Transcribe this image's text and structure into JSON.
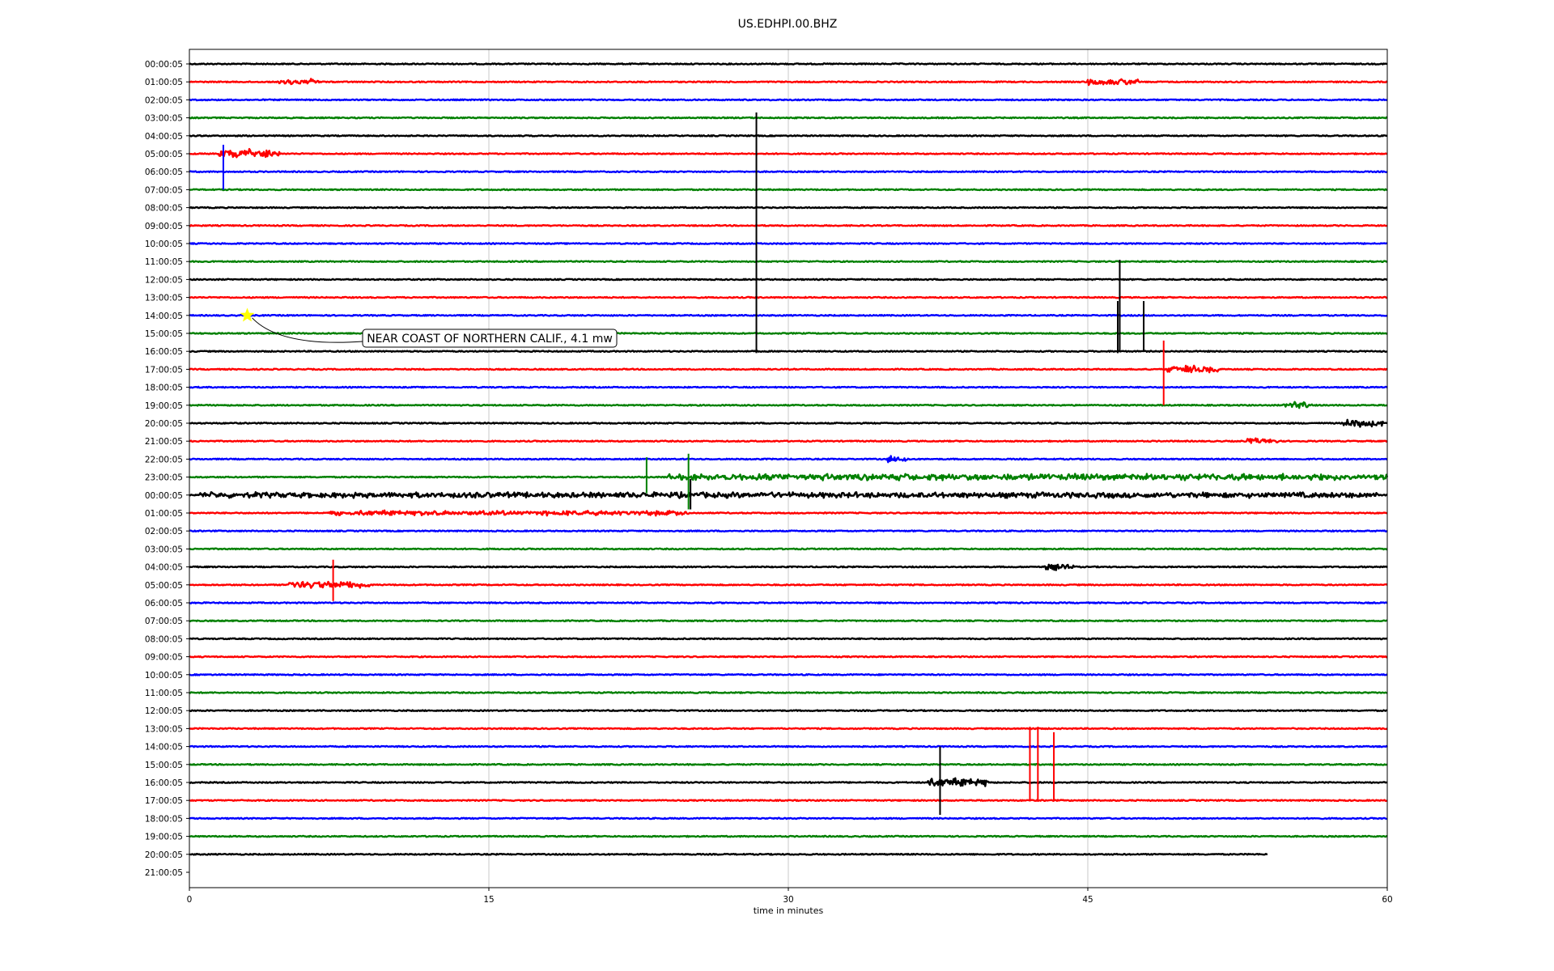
{
  "chart_data": {
    "type": "line",
    "title": "US.EDHPI.00.BHZ",
    "xlabel": "time in minutes",
    "ylabel": "",
    "xlim": [
      0,
      60
    ],
    "xticks": [
      "0",
      "15",
      "30",
      "45",
      "60"
    ],
    "grid": "vertical gridlines at 15, 30, 45",
    "row_labels": [
      "00:00:05",
      "01:00:05",
      "02:00:05",
      "03:00:05",
      "04:00:05",
      "05:00:05",
      "06:00:05",
      "07:00:05",
      "08:00:05",
      "09:00:05",
      "10:00:05",
      "11:00:05",
      "12:00:05",
      "13:00:05",
      "14:00:05",
      "15:00:05",
      "16:00:05",
      "17:00:05",
      "18:00:05",
      "19:00:05",
      "20:00:05",
      "21:00:05",
      "22:00:05",
      "23:00:05",
      "00:00:05",
      "01:00:05",
      "02:00:05",
      "03:00:05",
      "04:00:05",
      "05:00:05",
      "06:00:05",
      "07:00:05",
      "08:00:05",
      "09:00:05",
      "10:00:05",
      "11:00:05",
      "12:00:05",
      "13:00:05",
      "14:00:05",
      "15:00:05",
      "16:00:05",
      "17:00:05",
      "18:00:05",
      "19:00:05",
      "20:00:05",
      "21:00:05"
    ],
    "trace_colors": [
      "#000000",
      "#ff0000",
      "#0000ff",
      "#008000"
    ],
    "trace_end_minute": [
      60,
      60,
      60,
      60,
      60,
      60,
      60,
      60,
      60,
      60,
      60,
      60,
      60,
      60,
      60,
      60,
      60,
      60,
      60,
      60,
      60,
      60,
      60,
      60,
      60,
      60,
      60,
      60,
      60,
      60,
      60,
      60,
      60,
      60,
      60,
      60,
      60,
      60,
      60,
      60,
      60,
      60,
      60,
      60,
      54,
      0
    ],
    "spikes": [
      {
        "row": 3,
        "minute": 28.4,
        "up": 0.3,
        "down": 13.1,
        "color": "#000000"
      },
      {
        "row": 12,
        "minute": 46.6,
        "up": 1.1,
        "down": 4.0,
        "color": "#000000"
      },
      {
        "row": 14,
        "minute": 46.5,
        "up": 0.8,
        "down": 2.1,
        "color": "#000000"
      },
      {
        "row": 15,
        "minute": 47.8,
        "up": 1.8,
        "down": 1.0,
        "color": "#000000"
      },
      {
        "row": 5,
        "minute": 1.7,
        "up": 0.5,
        "down": 2.0,
        "color": "#0000ff"
      },
      {
        "row": 17,
        "minute": 48.8,
        "up": 1.6,
        "down": 2.0,
        "color": "#ff0000"
      },
      {
        "row": 23,
        "minute": 22.9,
        "up": 1.1,
        "down": 0.9,
        "color": "#008000"
      },
      {
        "row": 23,
        "minute": 25.0,
        "up": 1.3,
        "down": 1.8,
        "color": "#008000"
      },
      {
        "row": 24,
        "minute": 25.1,
        "up": 0.9,
        "down": 0.8,
        "color": "#000000"
      },
      {
        "row": 29,
        "minute": 7.2,
        "up": 1.4,
        "down": 0.9,
        "color": "#ff0000"
      },
      {
        "row": 37,
        "minute": 42.1,
        "up": 0.1,
        "down": 4.0,
        "color": "#ff0000"
      },
      {
        "row": 37,
        "minute": 42.5,
        "up": 0.1,
        "down": 4.0,
        "color": "#ff0000"
      },
      {
        "row": 38,
        "minute": 43.3,
        "up": 0.8,
        "down": 3.0,
        "color": "#ff0000"
      },
      {
        "row": 40,
        "minute": 37.6,
        "up": 2.0,
        "down": 1.8,
        "color": "#000000"
      }
    ],
    "bursts": [
      {
        "row": 1,
        "minute": 4.5,
        "width": 2.0,
        "amp": 0.35
      },
      {
        "row": 1,
        "minute": 45.0,
        "width": 2.5,
        "amp": 0.4
      },
      {
        "row": 5,
        "minute": 1.5,
        "width": 3.0,
        "amp": 0.6
      },
      {
        "row": 17,
        "minute": 49.0,
        "width": 2.5,
        "amp": 0.45
      },
      {
        "row": 19,
        "minute": 54.8,
        "width": 1.5,
        "amp": 0.5
      },
      {
        "row": 20,
        "minute": 57.8,
        "width": 2.0,
        "amp": 0.45
      },
      {
        "row": 21,
        "minute": 53.0,
        "width": 1.5,
        "amp": 0.35
      },
      {
        "row": 22,
        "minute": 35.0,
        "width": 1.0,
        "amp": 0.4
      },
      {
        "row": 23,
        "minute": 24.0,
        "width": 36.0,
        "amp": 0.4
      },
      {
        "row": 24,
        "minute": 0.5,
        "width": 59.0,
        "amp": 0.35
      },
      {
        "row": 25,
        "minute": 7.0,
        "width": 18.0,
        "amp": 0.3
      },
      {
        "row": 28,
        "minute": 42.8,
        "width": 1.5,
        "amp": 0.4
      },
      {
        "row": 29,
        "minute": 5.0,
        "width": 4.0,
        "amp": 0.45
      },
      {
        "row": 40,
        "minute": 37.0,
        "width": 3.0,
        "amp": 0.5
      }
    ],
    "annotations": [
      {
        "text": "NEAR COAST OF NORTHERN CALIF., 4.1 mw",
        "row": 14,
        "minute": 2.9,
        "marker": "star",
        "marker_color": "#ffff00"
      }
    ]
  }
}
